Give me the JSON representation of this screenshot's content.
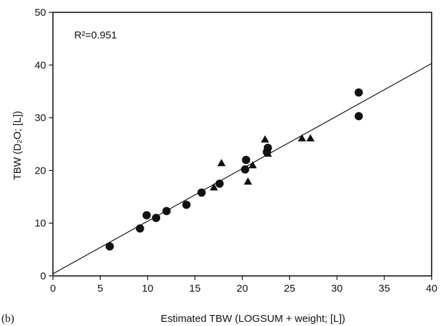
{
  "chart_data": {
    "type": "scatter",
    "panel_label": "(b)",
    "annotation": "R²=0.951",
    "xlabel": "Estimated TBW (LOGSUM + weight; [L])",
    "ylabel": "TBW (D₂O; [L])",
    "xlim": [
      0,
      40
    ],
    "ylim": [
      0,
      50
    ],
    "x_ticks": [
      0,
      5,
      10,
      15,
      20,
      25,
      30,
      35,
      40
    ],
    "y_ticks": [
      0,
      10,
      20,
      30,
      40,
      50
    ],
    "grid": false,
    "regression_line": {
      "x": [
        0,
        40
      ],
      "y": [
        0.4,
        40.3
      ]
    },
    "series": [
      {
        "marker": "circle",
        "points": [
          [
            6.0,
            5.6
          ],
          [
            9.2,
            9.0
          ],
          [
            9.9,
            11.5
          ],
          [
            10.9,
            11.0
          ],
          [
            12.0,
            12.3
          ],
          [
            14.1,
            13.5
          ],
          [
            15.7,
            15.8
          ],
          [
            17.6,
            17.5
          ],
          [
            20.3,
            20.2
          ],
          [
            20.4,
            22.0
          ],
          [
            22.7,
            24.3
          ],
          [
            22.6,
            23.5
          ],
          [
            32.3,
            34.8
          ],
          [
            32.3,
            30.3
          ]
        ]
      },
      {
        "marker": "triangle",
        "points": [
          [
            17.0,
            16.8
          ],
          [
            17.8,
            21.4
          ],
          [
            20.6,
            17.9
          ],
          [
            21.1,
            21.0
          ],
          [
            22.4,
            25.9
          ],
          [
            22.7,
            23.2
          ],
          [
            26.3,
            26.1
          ],
          [
            27.2,
            26.1
          ]
        ]
      }
    ]
  }
}
